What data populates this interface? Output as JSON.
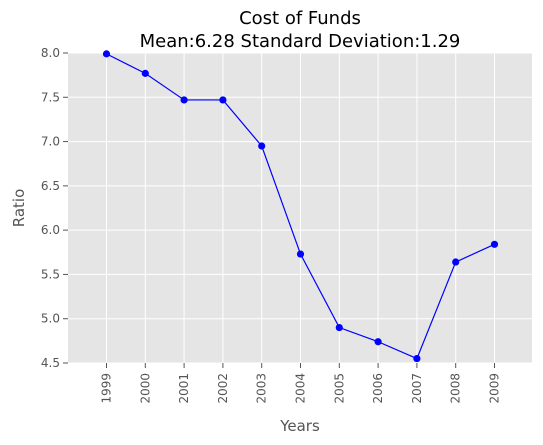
{
  "chart_data": {
    "type": "line",
    "title": "Cost of Funds",
    "subtitle": "Mean:6.28 Standard Deviation:1.29",
    "xlabel": "Years",
    "ylabel": "Ratio",
    "categories": [
      "1999",
      "2000",
      "2001",
      "2002",
      "2003",
      "2004",
      "2005",
      "2006",
      "2007",
      "2008",
      "2009"
    ],
    "series": [
      {
        "values": [
          7.99,
          7.77,
          7.47,
          7.47,
          6.95,
          5.73,
          4.9,
          4.74,
          4.55,
          5.64,
          5.84
        ],
        "color": "#0000ff",
        "marker": "circle"
      }
    ],
    "ylim": [
      4.5,
      8.0
    ],
    "yticks": [
      "4.5",
      "5.0",
      "5.5",
      "6.0",
      "6.5",
      "7.0",
      "7.5",
      "8.0"
    ],
    "grid": true,
    "legend": "none",
    "background_color": "#e5e5e5",
    "grid_color": "#ffffff"
  }
}
